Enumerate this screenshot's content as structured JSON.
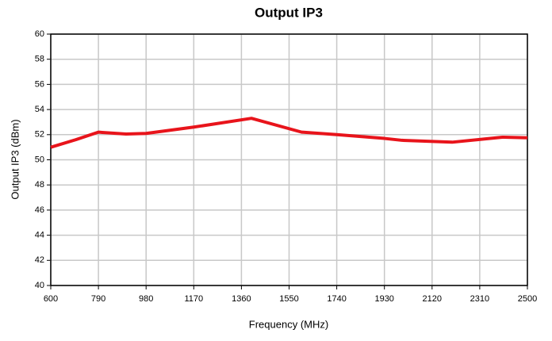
{
  "chart_data": {
    "type": "line",
    "title": "Output IP3",
    "xlabel": "Frequency (MHz)",
    "ylabel": "Output IP3 (dBm)",
    "x": [
      600,
      700,
      790,
      900,
      980,
      1170,
      1400,
      1600,
      1740,
      1930,
      2000,
      2200,
      2400,
      2500
    ],
    "series": [
      {
        "name": "Output IP3",
        "color": "#e8141b",
        "values": [
          51.0,
          51.6,
          52.2,
          52.05,
          52.1,
          52.6,
          53.3,
          52.2,
          52.0,
          51.7,
          51.55,
          51.4,
          51.8,
          51.75
        ]
      }
    ],
    "xlim": [
      600,
      2500
    ],
    "xticks": [
      600,
      790,
      980,
      1170,
      1360,
      1550,
      1740,
      1930,
      2120,
      2310,
      2500
    ],
    "ylim": [
      40,
      60
    ],
    "yticks": [
      40,
      42,
      44,
      46,
      48,
      50,
      52,
      54,
      56,
      58,
      60
    ],
    "grid": true
  }
}
